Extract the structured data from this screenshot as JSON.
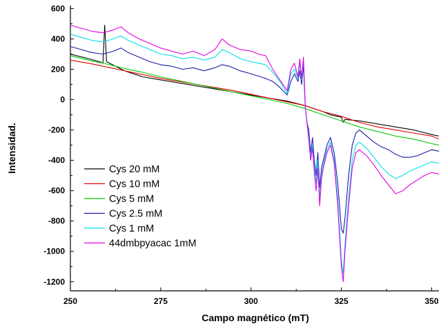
{
  "chart_data": {
    "type": "line",
    "title": "",
    "xlabel": "Campo magnético (mT)",
    "ylabel": "Intensidad.",
    "xlim": [
      250,
      352
    ],
    "ylim": [
      -1260,
      620
    ],
    "xticks": [
      250,
      275,
      300,
      325,
      350
    ],
    "yticks": [
      600,
      400,
      200,
      0,
      -200,
      -400,
      -600,
      -800,
      -1000,
      -1200
    ],
    "grid": false,
    "legend_position": "bottom-left",
    "series": [
      {
        "name": "Cys 20 mM",
        "color": "#000000",
        "x": [
          250,
          255,
          258,
          259,
          259.5,
          260,
          265,
          270,
          275,
          280,
          285,
          290,
          295,
          300,
          305,
          310,
          315,
          320,
          322,
          324,
          325,
          325.5,
          326,
          330,
          335,
          340,
          345,
          350,
          352
        ],
        "y": [
          300,
          270,
          250,
          240,
          490,
          250,
          190,
          150,
          130,
          110,
          90,
          70,
          50,
          30,
          10,
          -10,
          -40,
          -80,
          -100,
          -110,
          -115,
          -150,
          -130,
          -140,
          -160,
          -180,
          -200,
          -230,
          -240
        ]
      },
      {
        "name": "Cys 10 mM",
        "color": "#e00000",
        "x": [
          250,
          255,
          260,
          265,
          270,
          275,
          280,
          285,
          290,
          295,
          300,
          305,
          310,
          315,
          320,
          325,
          330,
          335,
          340,
          345,
          350,
          352
        ],
        "y": [
          260,
          240,
          215,
          190,
          165,
          140,
          120,
          100,
          80,
          60,
          35,
          10,
          -15,
          -40,
          -80,
          -110,
          -150,
          -180,
          -200,
          -220,
          -240,
          -260
        ]
      },
      {
        "name": "Cys 5 mM",
        "color": "#00cc00",
        "x": [
          250,
          255,
          260,
          265,
          270,
          275,
          280,
          285,
          290,
          295,
          300,
          305,
          310,
          315,
          320,
          325,
          330,
          335,
          340,
          345,
          350,
          352
        ],
        "y": [
          290,
          260,
          235,
          205,
          180,
          150,
          125,
          100,
          75,
          50,
          25,
          0,
          -25,
          -60,
          -100,
          -140,
          -180,
          -210,
          -240,
          -260,
          -290,
          -300
        ]
      },
      {
        "name": "Cys 2.5 mM",
        "color": "#1a1aa8",
        "x": [
          250,
          253,
          256,
          259,
          262,
          264,
          266,
          269,
          272,
          275,
          278,
          281,
          284,
          287,
          290,
          292,
          294,
          297,
          300,
          302,
          304,
          306,
          308,
          310,
          311,
          312,
          313,
          313.5,
          314,
          314.5,
          315,
          315.5,
          316,
          316.5,
          317,
          317.5,
          318,
          318.5,
          319,
          319.5,
          320,
          320.5,
          321,
          322,
          323,
          324,
          325,
          325.5,
          326,
          327,
          328,
          329,
          330,
          332,
          334,
          336,
          338,
          340,
          342,
          344,
          346,
          348,
          350,
          352
        ],
        "y": [
          350,
          330,
          310,
          300,
          320,
          340,
          310,
          280,
          250,
          230,
          220,
          200,
          210,
          190,
          210,
          230,
          220,
          190,
          170,
          155,
          140,
          120,
          80,
          30,
          120,
          170,
          120,
          190,
          100,
          230,
          -50,
          -150,
          -200,
          -350,
          -250,
          -400,
          -500,
          -350,
          -580,
          -450,
          -400,
          -350,
          -300,
          -250,
          -350,
          -550,
          -850,
          -880,
          -780,
          -500,
          -300,
          -220,
          -200,
          -240,
          -280,
          -310,
          -330,
          -360,
          -380,
          -380,
          -370,
          -350,
          -330,
          -340
        ]
      },
      {
        "name": "Cys 1 mM",
        "color": "#00e0e8",
        "x": [
          250,
          253,
          256,
          259,
          262,
          264,
          266,
          269,
          272,
          275,
          278,
          281,
          284,
          287,
          290,
          292,
          294,
          297,
          300,
          302,
          304,
          306,
          308,
          310,
          311,
          312,
          313,
          313.5,
          314,
          314.5,
          315,
          315.5,
          316,
          316.5,
          317,
          317.5,
          318,
          318.5,
          319,
          319.5,
          320,
          320.5,
          321,
          322,
          323,
          324,
          325,
          325.5,
          326,
          327,
          328,
          329,
          330,
          332,
          334,
          336,
          338,
          340,
          342,
          344,
          346,
          348,
          350,
          352
        ],
        "y": [
          430,
          410,
          390,
          380,
          400,
          420,
          390,
          360,
          330,
          300,
          290,
          270,
          280,
          260,
          280,
          330,
          310,
          270,
          250,
          240,
          230,
          180,
          120,
          40,
          170,
          200,
          140,
          240,
          130,
          270,
          -50,
          -150,
          -250,
          -380,
          -300,
          -450,
          -550,
          -400,
          -650,
          -500,
          -430,
          -380,
          -330,
          -280,
          -400,
          -650,
          -1050,
          -1150,
          -950,
          -650,
          -400,
          -300,
          -280,
          -320,
          -380,
          -440,
          -490,
          -520,
          -500,
          -470,
          -450,
          -430,
          -410,
          -420
        ]
      },
      {
        "name": "44dmbpyacac 1mM",
        "color": "#e000e0",
        "x": [
          250,
          253,
          256,
          259,
          262,
          264,
          266,
          269,
          272,
          275,
          278,
          281,
          284,
          287,
          290,
          292,
          294,
          297,
          300,
          302,
          304,
          306,
          308,
          310,
          311,
          312,
          313,
          313.5,
          314,
          314.5,
          315,
          315.5,
          316,
          316.5,
          317,
          317.5,
          318,
          318.5,
          319,
          319.5,
          320,
          320.5,
          321,
          322,
          323,
          324,
          325,
          325.5,
          326,
          327,
          328,
          329,
          330,
          332,
          334,
          336,
          338,
          340,
          342,
          344,
          346,
          348,
          350,
          352
        ],
        "y": [
          490,
          470,
          450,
          440,
          460,
          480,
          440,
          400,
          370,
          340,
          320,
          300,
          320,
          290,
          330,
          400,
          360,
          330,
          320,
          300,
          290,
          200,
          130,
          60,
          200,
          240,
          150,
          270,
          140,
          280,
          -40,
          -160,
          -270,
          -400,
          -320,
          -480,
          -600,
          -450,
          -700,
          -520,
          -450,
          -400,
          -350,
          -300,
          -420,
          -700,
          -1100,
          -1200,
          -1000,
          -700,
          -450,
          -350,
          -330,
          -370,
          -430,
          -500,
          -560,
          -620,
          -600,
          -560,
          -530,
          -500,
          -480,
          -490
        ]
      }
    ]
  }
}
